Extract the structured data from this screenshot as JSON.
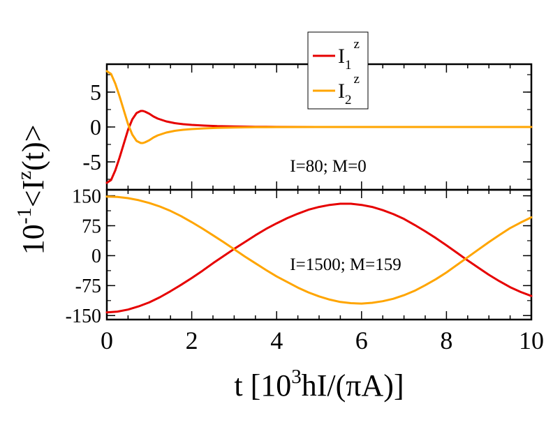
{
  "colors": {
    "series1": "#e60000",
    "series2": "#ffa500",
    "frame": "#000000"
  },
  "ylabel": {
    "base": "10",
    "exponent": "-1",
    "open": "<I",
    "sup": "z",
    "close": "(t)>"
  },
  "xlabel": {
    "prefix": "t [10",
    "sup": "3",
    "suffix": "hI/(πA)]"
  },
  "chart_data": [
    {
      "type": "line",
      "panel": "top",
      "annotation": "I=80; M=0",
      "xlim": [
        0,
        10
      ],
      "ylim": [
        -9.0,
        9.0
      ],
      "yticks": [
        -5,
        0,
        5
      ],
      "ytick_labels": [
        "-5",
        "0",
        "5"
      ],
      "legend": {
        "placement": "top-center",
        "entries": [
          {
            "base": "I",
            "sub": "1",
            "sup": "z"
          },
          {
            "base": "I",
            "sub": "2",
            "sup": "z"
          }
        ]
      },
      "series": [
        {
          "name": "I1z",
          "x": [
            0,
            0.1,
            0.2,
            0.3,
            0.4,
            0.5,
            0.6,
            0.7,
            0.8,
            0.85,
            0.9,
            1.0,
            1.1,
            1.2,
            1.4,
            1.6,
            1.8,
            2.0,
            2.3,
            2.6,
            3.0,
            3.5,
            4.0,
            5.0,
            6.0,
            8.0,
            10.0
          ],
          "y": [
            -8.0,
            -7.6,
            -6.2,
            -4.4,
            -2.4,
            -0.4,
            1.1,
            2.0,
            2.3,
            2.3,
            2.2,
            1.9,
            1.5,
            1.2,
            0.8,
            0.55,
            0.4,
            0.3,
            0.2,
            0.12,
            0.07,
            0.03,
            0.01,
            0.0,
            0.0,
            0.0,
            0.0
          ]
        },
        {
          "name": "I2z",
          "x": [
            0,
            0.1,
            0.2,
            0.3,
            0.4,
            0.5,
            0.6,
            0.7,
            0.8,
            0.85,
            0.9,
            1.0,
            1.1,
            1.2,
            1.4,
            1.6,
            1.8,
            2.0,
            2.3,
            2.6,
            3.0,
            3.5,
            4.0,
            5.0,
            6.0,
            8.0,
            10.0
          ],
          "y": [
            8.0,
            7.6,
            6.2,
            4.4,
            2.4,
            0.4,
            -1.1,
            -2.0,
            -2.3,
            -2.3,
            -2.2,
            -1.9,
            -1.5,
            -1.2,
            -0.8,
            -0.55,
            -0.4,
            -0.3,
            -0.2,
            -0.12,
            -0.07,
            -0.03,
            -0.01,
            0.0,
            0.0,
            0.0,
            0.0
          ]
        }
      ]
    },
    {
      "type": "line",
      "panel": "bottom",
      "annotation": "I=1500; M=159",
      "xlim": [
        0,
        10
      ],
      "ylim": [
        -160,
        165
      ],
      "yticks": [
        -150,
        -75,
        0,
        75,
        150
      ],
      "ytick_labels": [
        "-150",
        "-75",
        "0",
        "75",
        "150"
      ],
      "xticks": [
        0,
        2,
        4,
        6,
        8,
        10
      ],
      "xtick_labels": [
        "0",
        "2",
        "4",
        "6",
        "8",
        "10"
      ],
      "series": [
        {
          "name": "I1z",
          "x": [
            0,
            0.25,
            0.5,
            0.75,
            1.0,
            1.25,
            1.5,
            1.75,
            2.0,
            2.25,
            2.5,
            2.75,
            3.0,
            3.25,
            3.5,
            3.75,
            4.0,
            4.25,
            4.5,
            4.75,
            5.0,
            5.25,
            5.5,
            5.75,
            6.0,
            6.25,
            6.5,
            6.75,
            7.0,
            7.25,
            7.5,
            7.75,
            8.0,
            8.25,
            8.5,
            8.75,
            9.0,
            9.25,
            9.5,
            9.75,
            10.0
          ],
          "y": [
            -142,
            -140,
            -135,
            -127,
            -117,
            -104,
            -89,
            -73,
            -56,
            -38,
            -19,
            -1,
            17,
            34,
            51,
            67,
            81,
            94,
            105,
            115,
            122,
            127,
            130,
            130,
            127,
            122,
            114,
            104,
            92,
            77,
            61,
            44,
            26,
            7,
            -12,
            -30,
            -48,
            -64,
            -79,
            -91,
            -101
          ]
        },
        {
          "name": "I2z",
          "x": [
            0,
            0.25,
            0.5,
            0.75,
            1.0,
            1.25,
            1.5,
            1.75,
            2.0,
            2.25,
            2.5,
            2.75,
            3.0,
            3.25,
            3.5,
            3.75,
            4.0,
            4.25,
            4.5,
            4.75,
            5.0,
            5.25,
            5.5,
            5.75,
            6.0,
            6.25,
            6.5,
            6.75,
            7.0,
            7.25,
            7.5,
            7.75,
            8.0,
            8.25,
            8.5,
            8.75,
            9.0,
            9.25,
            9.5,
            9.75,
            10.0
          ],
          "y": [
            148,
            147,
            144,
            139,
            132,
            123,
            112,
            99,
            84,
            68,
            51,
            34,
            16,
            -2,
            -19,
            -36,
            -52,
            -66,
            -80,
            -92,
            -102,
            -110,
            -116,
            -119,
            -120,
            -118,
            -114,
            -108,
            -99,
            -88,
            -74,
            -59,
            -42,
            -23,
            -4,
            15,
            34,
            52,
            69,
            83,
            96
          ]
        }
      ]
    }
  ]
}
